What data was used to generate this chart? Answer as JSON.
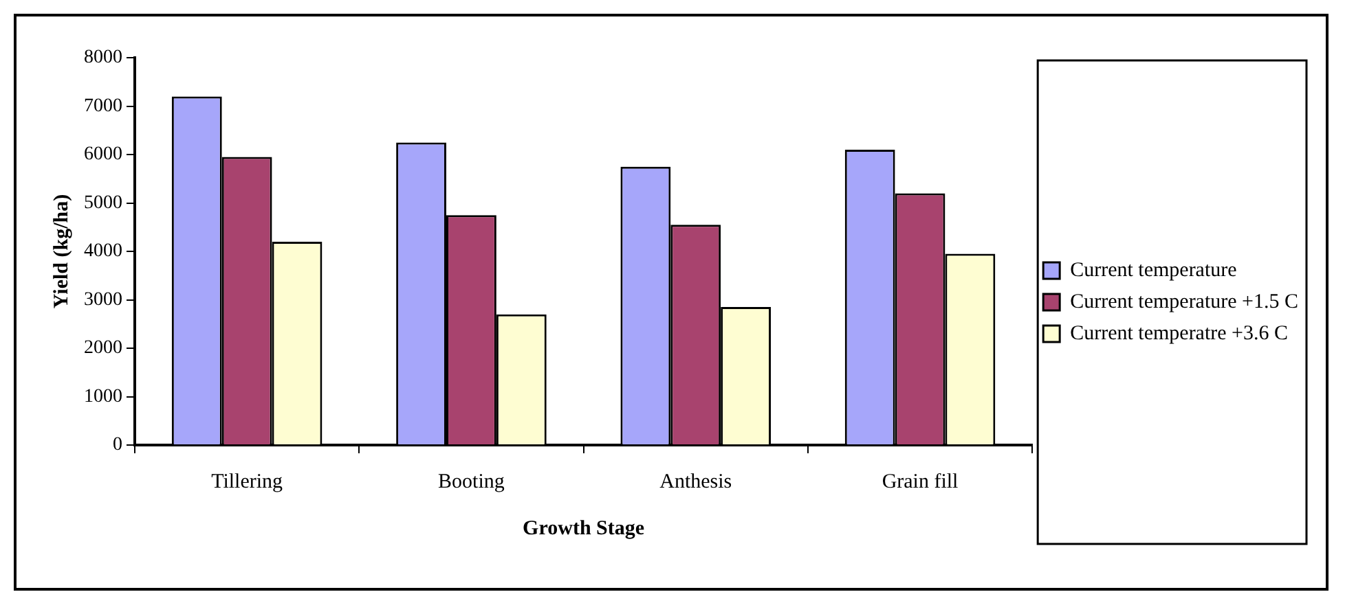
{
  "chart_data": {
    "type": "bar",
    "xlabel": "Growth Stage",
    "ylabel": "Yield (kg/ha)",
    "categories": [
      "Tillering",
      "Booting",
      "Anthesis",
      "Grain fill"
    ],
    "series": [
      {
        "name": "Current temperature",
        "color": "#a6a6fa",
        "values": [
          7200,
          6250,
          5750,
          6100
        ]
      },
      {
        "name": "Current temperature +1.5 C",
        "color": "#a8436e",
        "values": [
          5950,
          4750,
          4550,
          5200
        ]
      },
      {
        "name": "Current temperatre +3.6 C",
        "color": "#fefdd2",
        "values": [
          4200,
          2700,
          2850,
          3950
        ]
      }
    ],
    "ylim": [
      0,
      8000
    ],
    "yticks": [
      0,
      1000,
      2000,
      3000,
      4000,
      5000,
      6000,
      7000,
      8000
    ],
    "grid": false,
    "legend": "right"
  }
}
